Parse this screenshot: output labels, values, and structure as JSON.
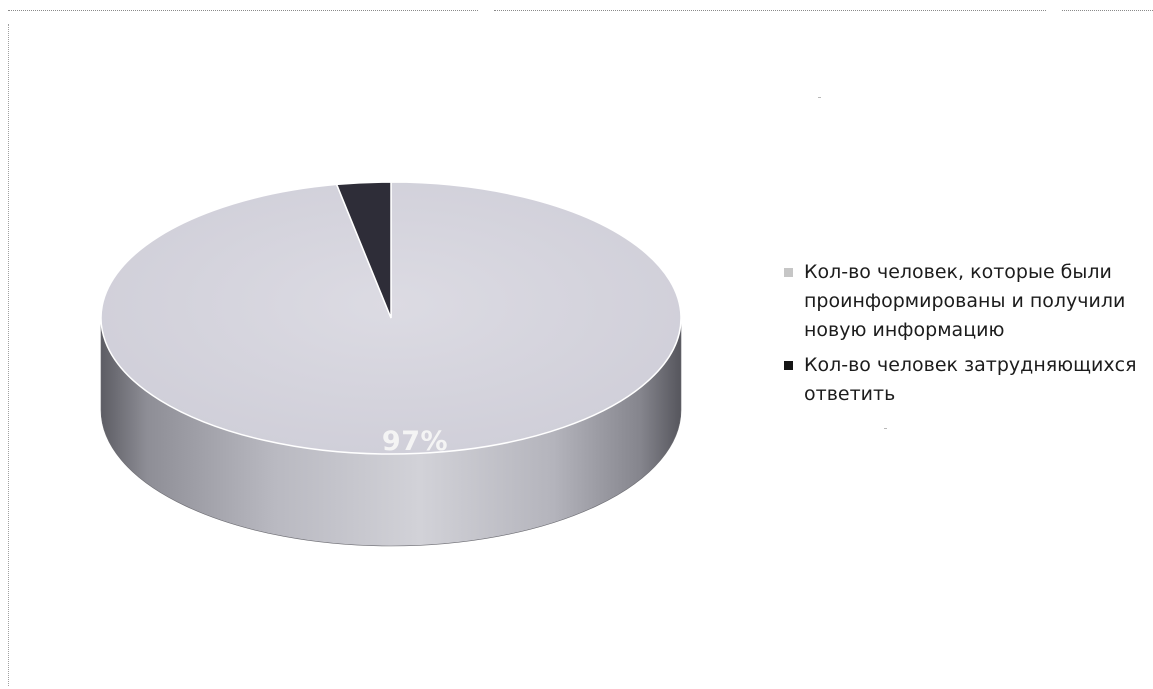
{
  "chart_data": {
    "type": "pie",
    "three_d": true,
    "title": "",
    "slices": [
      {
        "label": "Кол-во  человек, которые были проинформированы и получили новую информацию",
        "value": 97,
        "data_label": "97%",
        "color": "#d4d3dc"
      },
      {
        "label": "Кол-во человек затрудняющихся ответить",
        "value": 3,
        "data_label": "",
        "color": "#2e2d38"
      }
    ],
    "legend_placement": "right"
  },
  "legend": {
    "items": [
      {
        "text": "Кол-во  человек, которые были проинформированы и получили новую информацию",
        "swatch_color": "#c6c6c6"
      },
      {
        "text": "Кол-во человек затрудняющихся ответить",
        "swatch_color": "#151515"
      }
    ]
  }
}
